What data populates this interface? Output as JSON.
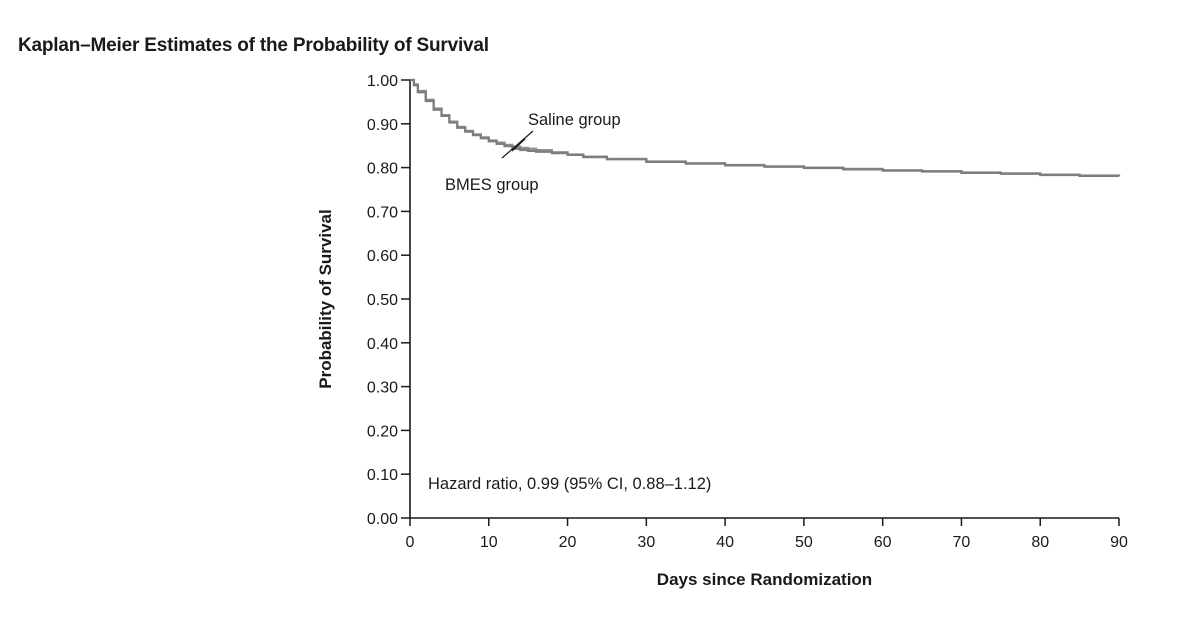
{
  "chart_data": {
    "type": "line",
    "title": "Kaplan–Meier Estimates of the Probability of Survival",
    "xlabel": "Days since Randomization",
    "ylabel": "Probability of Survival",
    "xlim": [
      0,
      90
    ],
    "ylim": [
      0,
      1
    ],
    "x_ticks": [
      0,
      10,
      20,
      30,
      40,
      50,
      60,
      70,
      80,
      90
    ],
    "y_ticks": [
      "0.00",
      "0.10",
      "0.20",
      "0.30",
      "0.40",
      "0.50",
      "0.60",
      "0.70",
      "0.80",
      "0.90",
      "1.00"
    ],
    "grid": false,
    "series": [
      {
        "name": "Saline group",
        "color": "#8f8f8f",
        "x": [
          0,
          0.5,
          1,
          2,
          3,
          4,
          5,
          6,
          7,
          8,
          9,
          10,
          11,
          12,
          13,
          14,
          15,
          16,
          18,
          20,
          22,
          25,
          30,
          35,
          40,
          45,
          50,
          55,
          60,
          65,
          70,
          75,
          80,
          85,
          90
        ],
        "y": [
          1.0,
          0.99,
          0.975,
          0.955,
          0.935,
          0.92,
          0.905,
          0.893,
          0.884,
          0.876,
          0.869,
          0.862,
          0.857,
          0.852,
          0.848,
          0.845,
          0.843,
          0.84,
          0.835,
          0.83,
          0.825,
          0.82,
          0.814,
          0.81,
          0.806,
          0.803,
          0.8,
          0.797,
          0.794,
          0.792,
          0.789,
          0.787,
          0.784,
          0.782,
          0.781
        ]
      },
      {
        "name": "BMES group",
        "color": "#7d7d7d",
        "x": [
          0,
          0.5,
          1,
          2,
          3,
          4,
          5,
          6,
          7,
          8,
          9,
          10,
          11,
          12,
          13,
          14,
          15,
          16,
          18,
          20,
          22,
          25,
          30,
          35,
          40,
          45,
          50,
          55,
          60,
          65,
          70,
          75,
          80,
          85,
          90
        ],
        "y": [
          1.0,
          0.988,
          0.972,
          0.952,
          0.932,
          0.918,
          0.903,
          0.891,
          0.882,
          0.874,
          0.867,
          0.86,
          0.854,
          0.849,
          0.843,
          0.84,
          0.838,
          0.836,
          0.833,
          0.829,
          0.824,
          0.819,
          0.813,
          0.809,
          0.805,
          0.802,
          0.799,
          0.796,
          0.793,
          0.791,
          0.788,
          0.786,
          0.783,
          0.781,
          0.78
        ]
      }
    ],
    "annotations": {
      "saline": "Saline group",
      "bmes": "BMES group",
      "hazard": "Hazard ratio, 0.99 (95% CI, 0.88–1.12)"
    }
  }
}
